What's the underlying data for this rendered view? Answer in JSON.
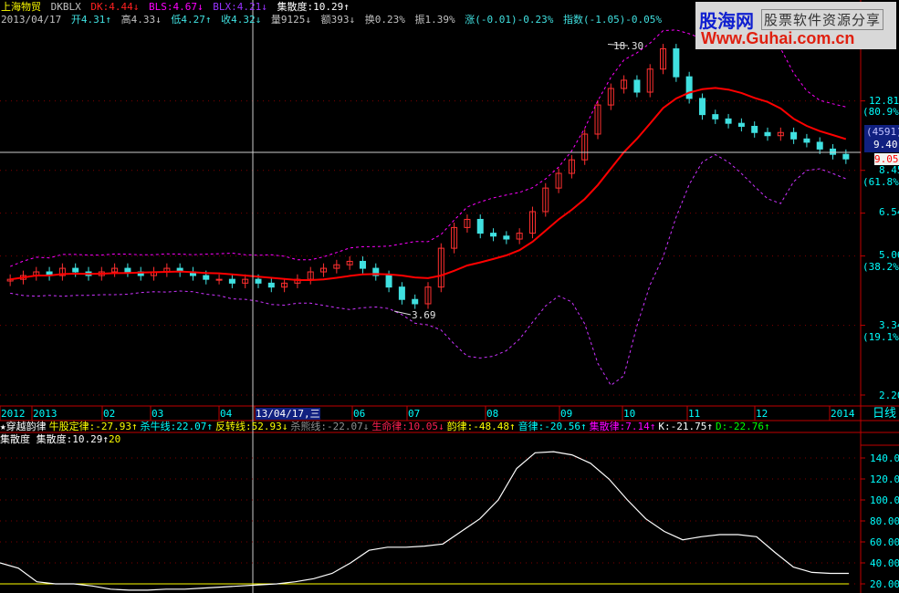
{
  "header": {
    "stock_name": "上海物贸",
    "indicator": "DKBLX",
    "dk": "DK:4.44↓",
    "bls": "BLS:4.67↓",
    "blx": "BLX:4.21↓",
    "jsd": "集散度:10.29↑",
    "date": "2013/04/17",
    "open": "开4.31↑",
    "high": "高4.33↓",
    "low": "低4.27↑",
    "close": "收4.32↓",
    "volume": "量9125↓",
    "amount": "额393↓",
    "turnover": "换0.23%",
    "amplitude": "振1.39%",
    "change": "涨(-0.01)-0.23%",
    "index": "指数(-1.05)-0.05%"
  },
  "logo": {
    "name": "股海网",
    "slogan": "股票软件资源分享",
    "url": "Www.Guhai.com.cn"
  },
  "price_axis": {
    "ticks": [
      "12.81",
      "8.45",
      "6.54",
      "5.06",
      "3.34",
      "2.20"
    ],
    "fib": [
      "(80.9%)",
      "(61.8%)",
      "(38.2%)",
      "(19.1%)"
    ],
    "cursor_box": [
      "(4591)",
      "9.40"
    ],
    "last_price": "9.05"
  },
  "annotations": {
    "high": "18.30",
    "low": "3.69"
  },
  "date_axis": {
    "labels": [
      "2012",
      "2013",
      "02",
      "03",
      "04",
      "13/04/17,三",
      "06",
      "07",
      "08",
      "09",
      "10",
      "11",
      "12",
      "2014"
    ],
    "period": "日线"
  },
  "indicator_row": {
    "title": "★穿越韵律",
    "items": [
      {
        "text": "牛股定律:-27.93↑",
        "color": "#ffff00"
      },
      {
        "text": "杀牛线:22.07↑",
        "color": "#00ffff"
      },
      {
        "text": "反转线:52.93↓",
        "color": "#ffff00"
      },
      {
        "text": "杀熊线:-22.07↓",
        "color": "#909090"
      },
      {
        "text": "生命律:10.05↓",
        "color": "#ff2050"
      },
      {
        "text": "韵律:-48.48↑",
        "color": "#ffff00"
      },
      {
        "text": "音律:-20.56↑",
        "color": "#00ffff"
      },
      {
        "text": "集散律:7.14↑",
        "color": "#ff00ff"
      },
      {
        "text": "K:-21.75↑",
        "color": "#ffffff"
      },
      {
        "text": "D:-22.76↑",
        "color": "#00ff00"
      }
    ]
  },
  "lower_panel": {
    "title": "集散度",
    "value": "集散度:10.29↑",
    "level": "20",
    "ticks": [
      "140.00",
      "120.00",
      "100.00",
      "80.00",
      "60.00",
      "40.00",
      "20.00"
    ]
  },
  "chart_data": [
    {
      "type": "candlestick",
      "scale": "log",
      "ylim": [
        2.2,
        18.3
      ],
      "x_range": [
        "2012",
        "2014"
      ],
      "close": [
        4.4,
        4.5,
        4.6,
        4.5,
        4.7,
        4.6,
        4.5,
        4.6,
        4.7,
        4.6,
        4.5,
        4.6,
        4.7,
        4.6,
        4.5,
        4.4,
        4.4,
        4.3,
        4.4,
        4.3,
        4.2,
        4.3,
        4.4,
        4.6,
        4.7,
        4.8,
        4.9,
        4.7,
        4.5,
        4.2,
        3.9,
        3.8,
        4.2,
        5.3,
        6.0,
        6.3,
        5.8,
        5.7,
        5.6,
        5.8,
        6.6,
        7.6,
        8.3,
        9.0,
        10.5,
        12.5,
        13.8,
        14.5,
        13.5,
        15.5,
        17.5,
        14.8,
        13.0,
        11.8,
        11.5,
        11.2,
        11.0,
        10.6,
        10.4,
        10.6,
        10.2,
        10.0,
        9.6,
        9.3,
        9.05
      ],
      "up_color": "#ff3030",
      "down_color": "#40e0e0",
      "ma_color": "#ff0000",
      "band_color": "#cc33ff"
    },
    {
      "type": "line",
      "name": "集散度",
      "ylim": [
        15,
        150
      ],
      "values": [
        40,
        35,
        22,
        20,
        20,
        18,
        15,
        14,
        14,
        15,
        15,
        16,
        17,
        18,
        19,
        20,
        22,
        25,
        30,
        40,
        52,
        55,
        55,
        56,
        58,
        70,
        82,
        100,
        130,
        145,
        146,
        143,
        135,
        120,
        100,
        82,
        70,
        62,
        65,
        67,
        67,
        65,
        50,
        36,
        31,
        30,
        30
      ],
      "reference": 20,
      "line_color": "#ffffff",
      "ref_color": "#ffff00"
    }
  ]
}
